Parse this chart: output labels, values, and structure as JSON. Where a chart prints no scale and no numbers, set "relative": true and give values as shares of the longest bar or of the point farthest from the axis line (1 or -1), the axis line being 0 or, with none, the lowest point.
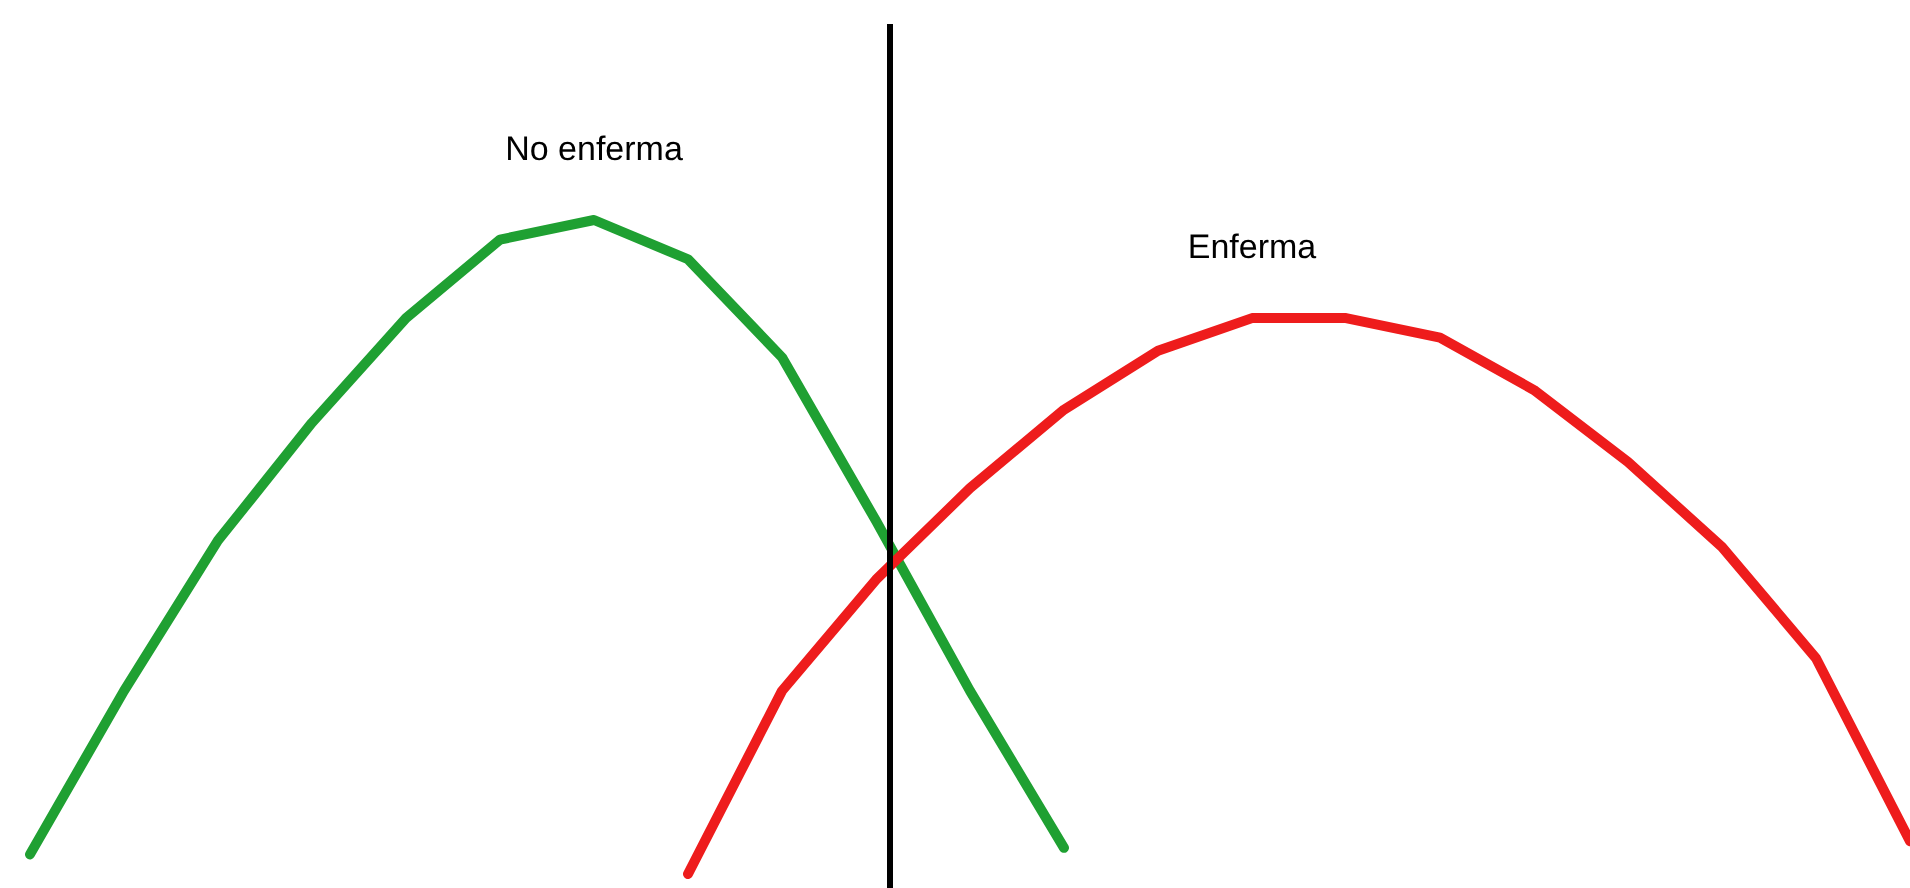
{
  "chart_data": {
    "type": "line",
    "relative": true,
    "marker": "none",
    "line_style": "solid",
    "categories": [
      null,
      null,
      null,
      null,
      null,
      null,
      null,
      null,
      null,
      null,
      null,
      null,
      null,
      null,
      null,
      null,
      null,
      null,
      null,
      null,
      null
    ],
    "series": [
      {
        "name": "No enferma",
        "color": "#1fa032",
        "values": [
          0.03,
          0.28,
          0.51,
          0.69,
          0.85,
          0.97,
          1.0,
          0.94,
          0.79,
          0.54,
          0.28,
          0.04,
          null,
          null,
          null,
          null,
          null,
          null,
          null,
          null,
          null
        ]
      },
      {
        "name": "Enferma",
        "color": "#ee1c1c",
        "values": [
          null,
          null,
          null,
          null,
          null,
          null,
          null,
          0,
          0.28,
          0.45,
          0.59,
          0.71,
          0.8,
          0.85,
          0.85,
          0.82,
          0.74,
          0.63,
          0.5,
          0.33,
          0.05
        ]
      }
    ]
  }
}
